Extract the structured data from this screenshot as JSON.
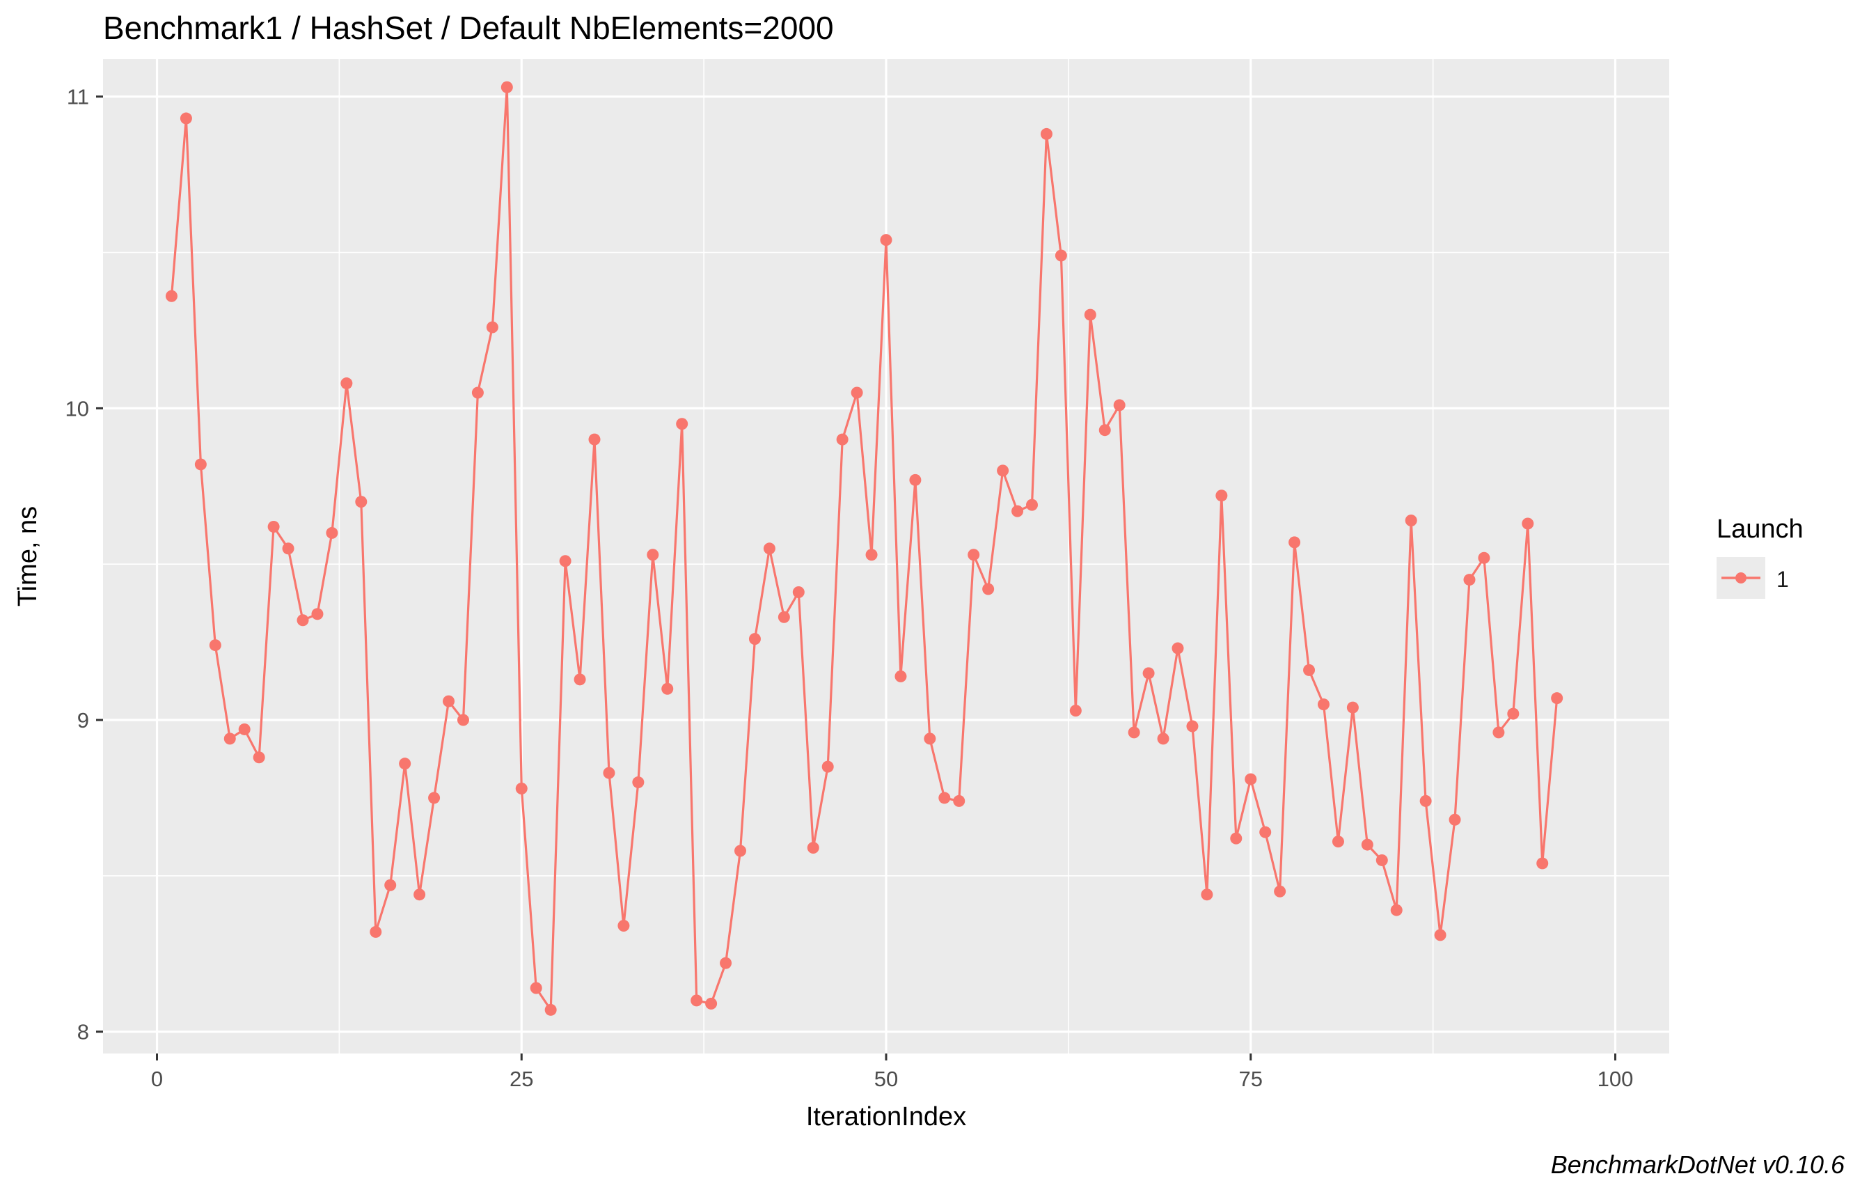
{
  "chart_data": {
    "type": "line",
    "title": "Benchmark1 / HashSet / Default NbElements=2000",
    "xlabel": "IterationIndex",
    "ylabel": "Time, ns",
    "xlim": [
      -3.7,
      103.7
    ],
    "ylim": [
      7.93,
      11.12
    ],
    "x_ticks": [
      0,
      25,
      50,
      75,
      100
    ],
    "x_tick_labels": [
      "0",
      "25",
      "50",
      "75",
      "100"
    ],
    "y_ticks": [
      8,
      9,
      10,
      11
    ],
    "y_tick_labels": [
      "8",
      "9",
      "10",
      "11"
    ],
    "grid": true,
    "legend": {
      "title": "Launch",
      "position": "right",
      "entries": [
        {
          "label": "1",
          "color": "#F8766D"
        }
      ]
    },
    "caption": "BenchmarkDotNet v0.10.6",
    "colors": {
      "panel": "#EBEBEB",
      "grid": "#FFFFFF",
      "series": "#F8766D"
    },
    "series": [
      {
        "name": "1",
        "color": "#F8766D",
        "x": [
          1,
          2,
          3,
          4,
          5,
          6,
          7,
          8,
          9,
          10,
          11,
          12,
          13,
          14,
          15,
          16,
          17,
          18,
          19,
          20,
          21,
          22,
          23,
          24,
          25,
          26,
          27,
          28,
          29,
          30,
          31,
          32,
          33,
          34,
          35,
          36,
          37,
          38,
          39,
          40,
          41,
          42,
          43,
          44,
          45,
          46,
          47,
          48,
          49,
          50,
          51,
          52,
          53,
          54,
          55,
          56,
          57,
          58,
          59,
          60,
          61,
          62,
          63,
          64,
          65,
          66,
          67,
          68,
          69,
          70,
          71,
          72,
          73,
          74,
          75,
          76,
          77,
          78,
          79,
          80,
          81,
          82,
          83,
          84,
          85,
          86,
          87,
          88,
          89,
          90,
          91,
          92,
          93,
          94,
          95,
          96
        ],
        "y": [
          10.36,
          10.93,
          9.82,
          9.24,
          8.94,
          8.97,
          8.88,
          9.62,
          9.55,
          9.32,
          9.34,
          9.6,
          10.08,
          9.7,
          8.32,
          8.47,
          8.86,
          8.44,
          8.75,
          9.06,
          9.0,
          10.05,
          10.26,
          11.03,
          8.78,
          8.14,
          8.07,
          9.51,
          9.13,
          9.9,
          8.83,
          8.34,
          8.8,
          9.53,
          9.1,
          9.95,
          8.1,
          8.09,
          8.22,
          8.58,
          9.26,
          9.55,
          9.33,
          9.41,
          8.59,
          8.85,
          9.9,
          10.05,
          9.53,
          10.54,
          9.14,
          9.77,
          8.94,
          8.75,
          8.74,
          9.53,
          9.42,
          9.8,
          9.67,
          9.69,
          10.88,
          10.49,
          9.03,
          10.3,
          9.93,
          10.01,
          8.96,
          9.15,
          8.94,
          9.23,
          8.98,
          8.44,
          9.72,
          8.62,
          8.81,
          8.64,
          8.45,
          9.57,
          9.16,
          9.05,
          8.61,
          9.04,
          8.6,
          8.55,
          8.39,
          9.64,
          8.74,
          8.31,
          8.68,
          9.45,
          9.52,
          8.96,
          9.02,
          9.63,
          8.54,
          9.07
        ]
      }
    ]
  }
}
